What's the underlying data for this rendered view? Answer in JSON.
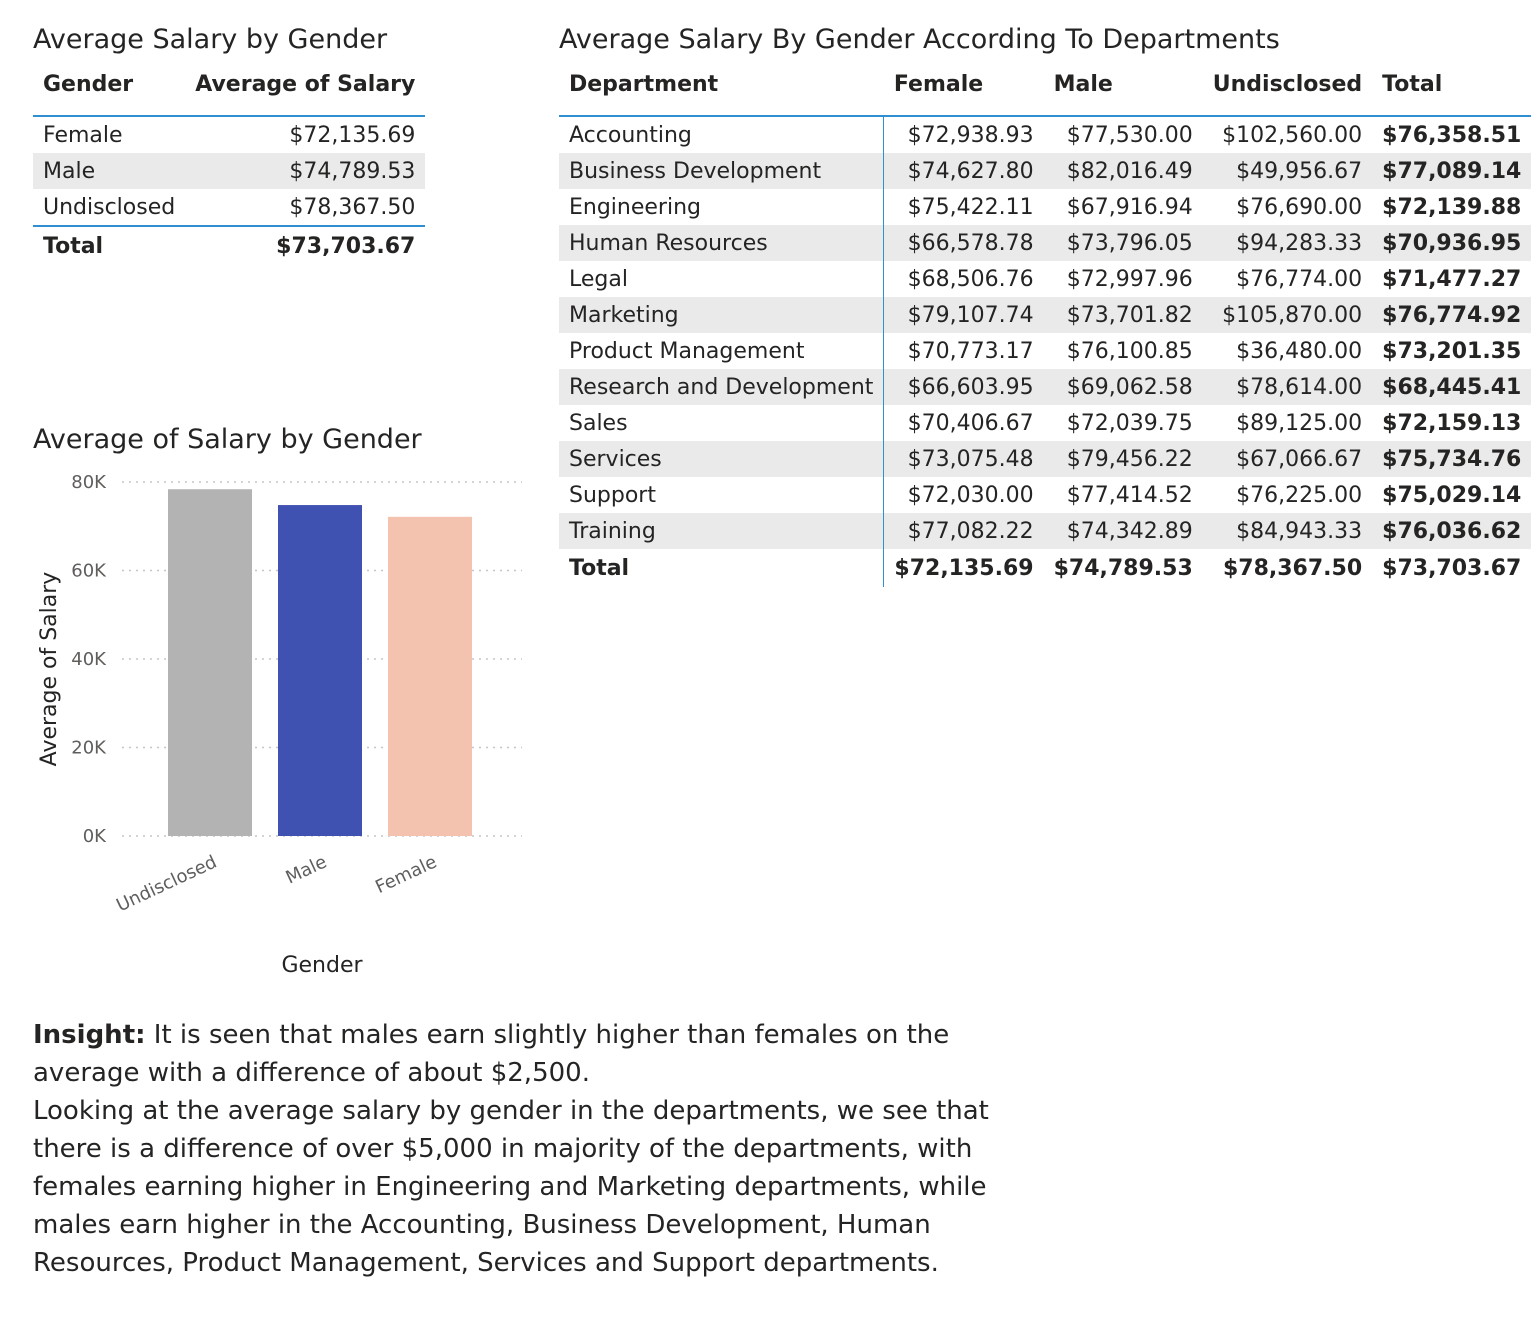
{
  "table1": {
    "title": "Average Salary by Gender",
    "headers": [
      "Gender",
      "Average of Salary"
    ],
    "rows": [
      {
        "gender": "Female",
        "salary": "$72,135.69"
      },
      {
        "gender": "Male",
        "salary": "$74,789.53"
      },
      {
        "gender": "Undisclosed",
        "salary": "$78,367.50"
      }
    ],
    "total": {
      "label": "Total",
      "salary": "$73,703.67"
    }
  },
  "table2": {
    "title": "Average Salary By Gender According To Departments",
    "headers": [
      "Department",
      "Female",
      "Male",
      "Undisclosed",
      "Total"
    ],
    "rows": [
      {
        "dept": "Accounting",
        "female": "$72,938.93",
        "male": "$77,530.00",
        "undisclosed": "$102,560.00",
        "total": "$76,358.51"
      },
      {
        "dept": "Business Development",
        "female": "$74,627.80",
        "male": "$82,016.49",
        "undisclosed": "$49,956.67",
        "total": "$77,089.14"
      },
      {
        "dept": "Engineering",
        "female": "$75,422.11",
        "male": "$67,916.94",
        "undisclosed": "$76,690.00",
        "total": "$72,139.88"
      },
      {
        "dept": "Human Resources",
        "female": "$66,578.78",
        "male": "$73,796.05",
        "undisclosed": "$94,283.33",
        "total": "$70,936.95"
      },
      {
        "dept": "Legal",
        "female": "$68,506.76",
        "male": "$72,997.96",
        "undisclosed": "$76,774.00",
        "total": "$71,477.27"
      },
      {
        "dept": "Marketing",
        "female": "$79,107.74",
        "male": "$73,701.82",
        "undisclosed": "$105,870.00",
        "total": "$76,774.92"
      },
      {
        "dept": "Product Management",
        "female": "$70,773.17",
        "male": "$76,100.85",
        "undisclosed": "$36,480.00",
        "total": "$73,201.35"
      },
      {
        "dept": "Research and Development",
        "female": "$66,603.95",
        "male": "$69,062.58",
        "undisclosed": "$78,614.00",
        "total": "$68,445.41"
      },
      {
        "dept": "Sales",
        "female": "$70,406.67",
        "male": "$72,039.75",
        "undisclosed": "$89,125.00",
        "total": "$72,159.13"
      },
      {
        "dept": "Services",
        "female": "$73,075.48",
        "male": "$79,456.22",
        "undisclosed": "$67,066.67",
        "total": "$75,734.76"
      },
      {
        "dept": "Support",
        "female": "$72,030.00",
        "male": "$77,414.52",
        "undisclosed": "$76,225.00",
        "total": "$75,029.14"
      },
      {
        "dept": "Training",
        "female": "$77,082.22",
        "male": "$74,342.89",
        "undisclosed": "$84,943.33",
        "total": "$76,036.62"
      }
    ],
    "total": {
      "dept": "Total",
      "female": "$72,135.69",
      "male": "$74,789.53",
      "undisclosed": "$78,367.50",
      "total": "$73,703.67"
    }
  },
  "chart_data": {
    "type": "bar",
    "title": "Average of Salary by Gender",
    "xlabel": "Gender",
    "ylabel": "Average of Salary",
    "categories": [
      "Undisclosed",
      "Male",
      "Female"
    ],
    "values": [
      78367.5,
      74789.53,
      72135.69
    ],
    "colors": [
      "#b3b3b3",
      "#3f51b1",
      "#f4c3b0"
    ],
    "ylim": [
      0,
      80000
    ],
    "yticks": [
      0,
      20000,
      40000,
      60000,
      80000
    ],
    "ytick_labels": [
      "0K",
      "20K",
      "40K",
      "60K",
      "80K"
    ],
    "grid": true
  },
  "insight": {
    "label": "Insight:",
    "line1": " It is seen that males earn slightly higher than females on the average with a difference of about $2,500.",
    "line2": "Looking at the average salary by gender in the departments, we see that there is a difference of over $5,000 in majority of the departments, with females earning higher in Engineering and Marketing departments, while males earn higher in the Accounting, Business Development, Human Resources, Product Management, Services and Support departments."
  }
}
